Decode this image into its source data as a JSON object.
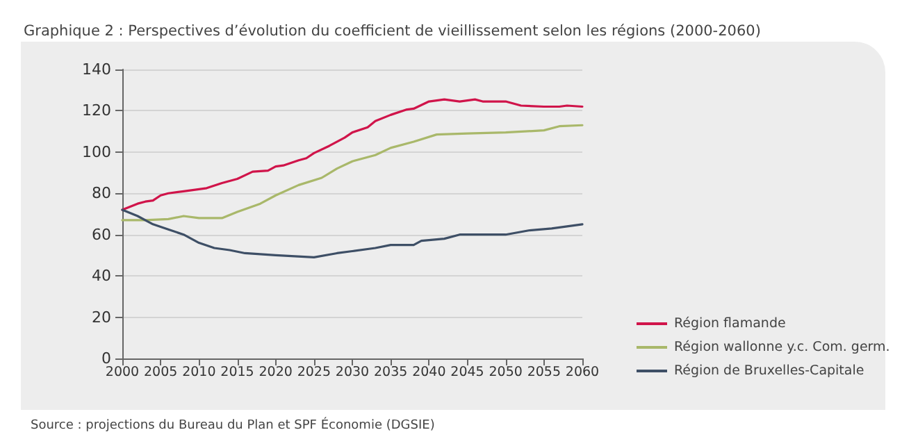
{
  "chart_data": {
    "type": "line",
    "title": "Graphique 2 : Perspectives d’évolution du coefficient de vieillissement selon les régions (2000-2060)",
    "annotations": [
      "Source : projections du Bureau du Plan et SPF Économie (DGSIE)"
    ],
    "series": [
      {
        "name": "Région flamande",
        "color": "#d0144a",
        "x": [
          2000,
          2002,
          2003,
          2004,
          2005,
          2006,
          2008,
          2010,
          2011,
          2013,
          2015,
          2017,
          2019,
          2020,
          2021,
          2023,
          2024,
          2025,
          2027,
          2029,
          2030,
          2032,
          2033,
          2035,
          2037,
          2038,
          2040,
          2042,
          2044,
          2046,
          2047,
          2050,
          2052,
          2055,
          2057,
          2058,
          2060
        ],
        "values": [
          72,
          75,
          76,
          76.5,
          79,
          80,
          81,
          82,
          82.5,
          85,
          87,
          90.5,
          91,
          93,
          93.5,
          96,
          97,
          99.5,
          103,
          107,
          109.5,
          112,
          115,
          118,
          120.5,
          121,
          124.5,
          125.5,
          124.5,
          125.5,
          124.5,
          124.5,
          122.5,
          122,
          122,
          122.5,
          122
        ]
      },
      {
        "name": "Région wallonne y.c. Com. germ.",
        "color": "#a9b86a",
        "x": [
          2000,
          2003,
          2006,
          2008,
          2010,
          2013,
          2015,
          2018,
          2020,
          2023,
          2026,
          2028,
          2030,
          2033,
          2035,
          2038,
          2041,
          2045,
          2050,
          2055,
          2057,
          2060
        ],
        "values": [
          67,
          67,
          67.5,
          69,
          68,
          68,
          71,
          75,
          79,
          84,
          87.5,
          92,
          95.5,
          98.5,
          102,
          105,
          108.5,
          109,
          109.5,
          110.5,
          112.5,
          113
        ]
      },
      {
        "name": "Région de Bruxelles-Capitale",
        "color": "#3e4f66",
        "x": [
          2000,
          2002,
          2004,
          2006,
          2008,
          2010,
          2012,
          2014,
          2016,
          2020,
          2025,
          2028,
          2030,
          2033,
          2035,
          2038,
          2039,
          2042,
          2044,
          2050,
          2053,
          2056,
          2060
        ],
        "values": [
          72,
          69,
          65,
          62.5,
          60,
          56,
          53.5,
          52.5,
          51,
          50,
          49,
          51,
          52,
          53.5,
          55,
          55,
          57,
          58,
          60,
          60,
          62,
          63,
          65
        ]
      }
    ],
    "xlim": [
      2000,
      2060
    ],
    "xticks": [
      2000,
      2005,
      2010,
      2015,
      2020,
      2025,
      2030,
      2035,
      2040,
      2045,
      2050,
      2055,
      2060
    ],
    "ylim": [
      0,
      140
    ],
    "yticks": [
      0,
      20,
      40,
      60,
      80,
      100,
      120,
      140
    ],
    "grid": "y",
    "legend": "bottom right",
    "marker": "none",
    "line_style": "solid"
  }
}
